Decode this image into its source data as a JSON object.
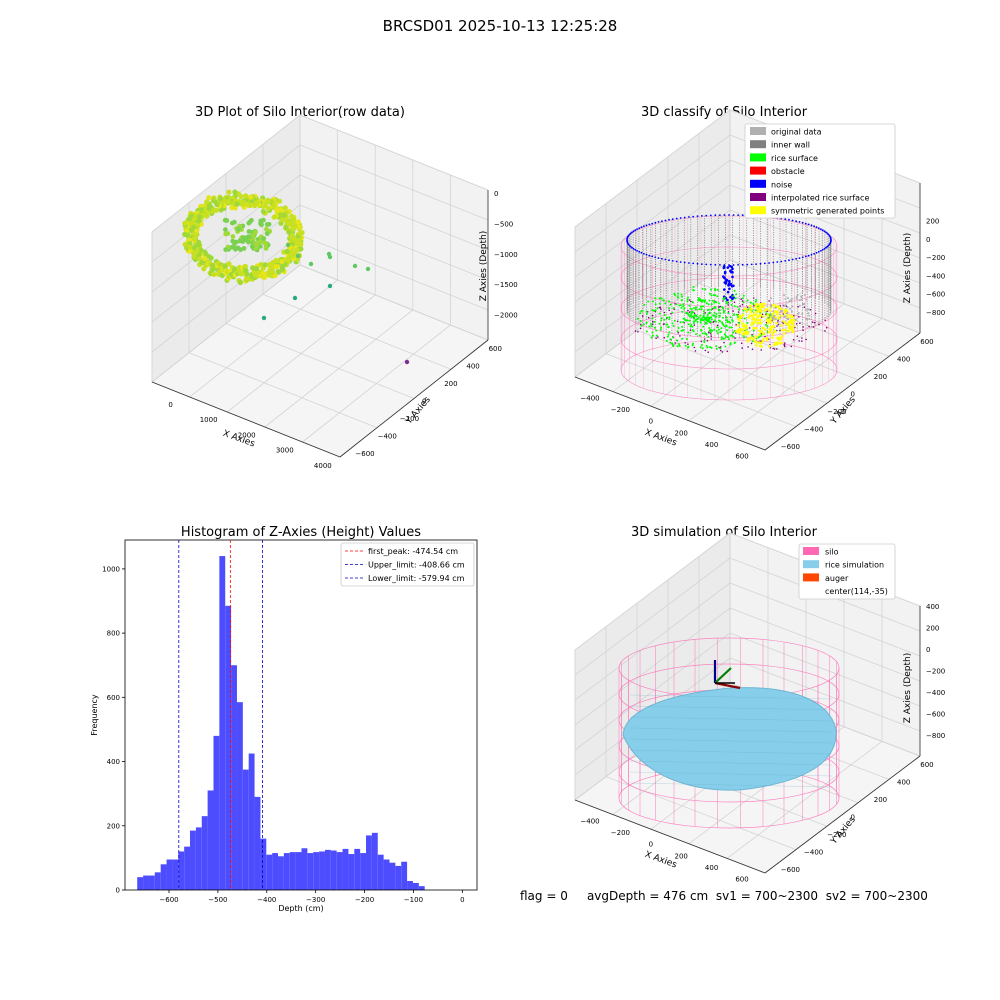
{
  "figure": {
    "suptitle": "BRCSD01 2025-10-13 12:25:28",
    "footer": {
      "flag": "flag = 0",
      "avg_depth": "avgDepth = 476 cm",
      "sv1": "sv1 = 700~2300",
      "sv2": "sv2 = 700~2300"
    }
  },
  "colors": {
    "original_data": "#b0b0b0",
    "inner_wall": "#808080",
    "rice_surface": "#00ff00",
    "obstacle": "#ff0000",
    "noise": "#0000ff",
    "interpolated": "#800080",
    "symmetric": "#ffff00",
    "silo": "#ff69b4",
    "rice_sim": "#87ceeb",
    "auger": "#ff4500",
    "hist_bar": "#4d4dff",
    "first_peak": "#ff0000",
    "limit": "#0000cc"
  },
  "chart_data": [
    {
      "type": "scatter",
      "title": "3D Plot of Silo Interior(row data)",
      "xlabel": "X Axies",
      "ylabel": "Y Axies",
      "zlabel": "Z Axies (Depth)",
      "x_ticks": [
        "0",
        "1000",
        "2000",
        "3000",
        "4000"
      ],
      "y_ticks": [
        "600",
        "400",
        "200",
        "0",
        "−200",
        "−400",
        "−600"
      ],
      "z_ticks": [
        "0",
        "−500",
        "−1000",
        "−1500",
        "−2000"
      ],
      "xlim": [
        -700,
        4000
      ],
      "ylim": [
        -700,
        700
      ],
      "zlim": [
        -2300,
        0
      ],
      "colormap": "viridis",
      "series": [
        {
          "description": "dense ring of points",
          "x_range": [
            -600,
            700
          ],
          "y_range": [
            -650,
            650
          ],
          "z_range": [
            -700,
            -350
          ]
        },
        {
          "description": "sparse outliers",
          "points": [
            [
              1100,
              150,
              -800
            ],
            [
              1400,
              100,
              -1050
            ],
            [
              1700,
              0,
              -1000
            ],
            [
              2300,
              -100,
              -1200
            ],
            [
              2600,
              -150,
              -1200
            ],
            [
              1200,
              -200,
              -1500
            ],
            [
              1800,
              -200,
              -1400
            ],
            [
              900,
              -100,
              -1800
            ],
            [
              3900,
              500,
              -2200
            ]
          ]
        }
      ]
    },
    {
      "type": "scatter",
      "title": "3D classify of Silo Interior",
      "xlabel": "X Axies",
      "ylabel": "Y Axies",
      "zlabel": "Z Axies (Depth)",
      "x_ticks": [
        "−400",
        "−200",
        "0",
        "200",
        "400",
        "600"
      ],
      "y_ticks": [
        "600",
        "400",
        "200",
        "0",
        "−200",
        "−400",
        "−600"
      ],
      "z_ticks": [
        "200",
        "0",
        "−200",
        "−400",
        "−600",
        "−800"
      ],
      "legend": [
        "original data",
        "inner wall",
        "rice surface",
        "obstacle",
        "noise",
        "interpolated rice surface",
        "symmetric generated points"
      ],
      "legend_loc": "upper right"
    },
    {
      "type": "bar",
      "title": "Histogram of Z-Axies (Height) Values",
      "xlabel": "Depth (cm)",
      "ylabel": "Frequency",
      "x_ticks": [
        "−600",
        "−500",
        "−400",
        "−300",
        "−200",
        "−100",
        "0"
      ],
      "y_ticks": [
        "0",
        "200",
        "400",
        "600",
        "800",
        "1000"
      ],
      "xlim": [
        -690,
        30
      ],
      "ylim": [
        0,
        1090
      ],
      "bin_start": -665,
      "bin_width": 12,
      "values": [
        40,
        45,
        45,
        55,
        80,
        95,
        95,
        120,
        135,
        185,
        195,
        230,
        310,
        480,
        1040,
        885,
        700,
        585,
        375,
        425,
        290,
        160,
        110,
        115,
        105,
        115,
        118,
        118,
        130,
        115,
        118,
        120,
        125,
        123,
        118,
        128,
        112,
        128,
        115,
        170,
        178,
        110,
        95,
        85,
        75,
        88,
        28,
        22,
        12
      ],
      "vlines": [
        {
          "x": -474.54,
          "label": "first_peak: -474.54 cm",
          "color": "first_peak"
        },
        {
          "x": -408.66,
          "label": "Upper_limit: -408.66 cm",
          "color": "limit"
        },
        {
          "x": -579.94,
          "label": "Lower_limit: -579.94 cm",
          "color": "limit"
        }
      ],
      "legend_loc": "upper right"
    },
    {
      "type": "scatter",
      "title": "3D simulation of Silo Interior",
      "xlabel": "X Axies",
      "ylabel": "Y Axies",
      "zlabel": "Z Axies (Depth)",
      "x_ticks": [
        "−400",
        "−200",
        "0",
        "200",
        "400",
        "600"
      ],
      "y_ticks": [
        "600",
        "400",
        "200",
        "0",
        "−200",
        "−400",
        "−600"
      ],
      "z_ticks": [
        "400",
        "200",
        "0",
        "−200",
        "−400",
        "−600",
        "−800"
      ],
      "legend": [
        "silo",
        "rice simulation",
        "auger",
        "center(114,-35)"
      ],
      "legend_loc": "upper right"
    }
  ]
}
